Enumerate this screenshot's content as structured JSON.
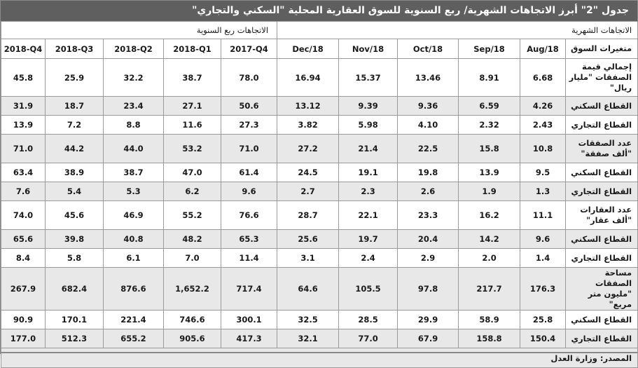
{
  "title": "جدول \"2\" أبرز الاتجاهات الشهرية/ ربع السنوية للسوق العقارية المحلية \"السكني والتجاري\"",
  "groups": {
    "quarterly": "الاتجاهات ربع السنوية",
    "monthly": "الاتجاهات الشهرية"
  },
  "columns": {
    "label": "متغيرات السوق",
    "periods": [
      "Aug/18",
      "Sep/18",
      "Oct/18",
      "Nov/18",
      "Dec/18",
      "2017-Q4",
      "2018-Q1",
      "2018-Q2",
      "2018-Q3",
      "2018-Q4"
    ]
  },
  "rows": [
    {
      "label": "إجمالي قيمة الصفقات \"مليار ريال\"",
      "values": [
        "6.68",
        "8.91",
        "13.46",
        "15.37",
        "16.94",
        "78.0",
        "38.7",
        "32.2",
        "25.9",
        "45.8"
      ]
    },
    {
      "label": "القطاع السكني",
      "values": [
        "4.26",
        "6.59",
        "9.36",
        "9.39",
        "13.12",
        "50.6",
        "27.1",
        "23.4",
        "18.7",
        "31.9"
      ]
    },
    {
      "label": "القطاع التجاري",
      "values": [
        "2.43",
        "2.32",
        "4.10",
        "5.98",
        "3.82",
        "27.3",
        "11.6",
        "8.8",
        "7.2",
        "13.9"
      ]
    },
    {
      "label": "عدد الصفقات \"ألف صفقة\"",
      "values": [
        "10.8",
        "15.8",
        "22.5",
        "21.4",
        "27.2",
        "71.0",
        "53.2",
        "44.0",
        "44.2",
        "71.0"
      ]
    },
    {
      "label": "القطاع السكني",
      "values": [
        "9.5",
        "13.9",
        "19.8",
        "19.1",
        "24.5",
        "61.4",
        "47.0",
        "38.7",
        "38.9",
        "63.4"
      ]
    },
    {
      "label": "القطاع التجاري",
      "values": [
        "1.3",
        "1.9",
        "2.6",
        "2.3",
        "2.7",
        "9.6",
        "6.2",
        "5.3",
        "5.4",
        "7.6"
      ]
    },
    {
      "label": "عدد العقارات \"ألف عقار\"",
      "values": [
        "11.1",
        "16.2",
        "23.3",
        "22.1",
        "28.7",
        "76.6",
        "55.2",
        "46.9",
        "45.6",
        "74.0"
      ]
    },
    {
      "label": "القطاع السكني",
      "values": [
        "9.6",
        "14.2",
        "20.4",
        "19.7",
        "25.6",
        "65.3",
        "48.2",
        "40.8",
        "39.8",
        "65.6"
      ]
    },
    {
      "label": "القطاع التجاري",
      "values": [
        "1.4",
        "2.0",
        "2.9",
        "2.4",
        "3.1",
        "11.4",
        "7.0",
        "6.1",
        "5.8",
        "8.4"
      ]
    },
    {
      "label": "مساحة الصفقات \"مليون متر مربع\"",
      "values": [
        "176.3",
        "217.7",
        "97.8",
        "105.5",
        "64.6",
        "717.4",
        "1,652.2",
        "876.6",
        "682.4",
        "267.9"
      ]
    },
    {
      "label": "القطاع السكني",
      "values": [
        "25.8",
        "58.9",
        "29.9",
        "28.5",
        "32.5",
        "300.1",
        "746.6",
        "221.4",
        "170.1",
        "90.9"
      ]
    },
    {
      "label": "القطاع التجاري",
      "values": [
        "150.4",
        "158.8",
        "67.9",
        "77.0",
        "32.1",
        "417.3",
        "905.6",
        "655.2",
        "512.3",
        "177.0"
      ]
    }
  ],
  "source": "المصدر: وزارة العدل"
}
